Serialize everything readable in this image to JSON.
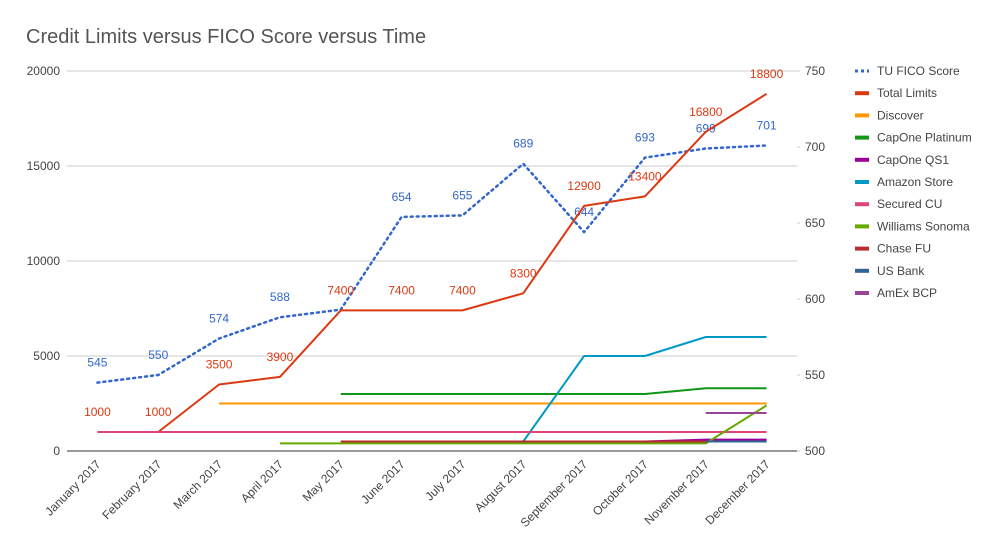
{
  "chart_data": {
    "type": "line",
    "title": "Credit Limits versus FICO Score versus Time",
    "categories": [
      "January 2017",
      "February 2017",
      "March 2017",
      "April 2017",
      "May 2017",
      "June 2017",
      "July 2017",
      "August 2017",
      "September 2017",
      "October 2017",
      "November 2017",
      "December 2017"
    ],
    "ylim": [
      0,
      20000
    ],
    "yticks": [
      0,
      5000,
      10000,
      15000,
      20000
    ],
    "y2lim": [
      500,
      750
    ],
    "y2ticks": [
      500,
      550,
      600,
      650,
      700,
      750
    ],
    "grid": true,
    "legend": "right",
    "series": [
      {
        "name": "TU FICO Score",
        "color": "#3366cc",
        "axis": "y2",
        "line_style": "dotted",
        "values": [
          545,
          550,
          574,
          588,
          593,
          654,
          655,
          689,
          644,
          693,
          699,
          701
        ],
        "value_labels": [
          "545",
          "550",
          "574",
          "588",
          null,
          "654",
          "655",
          "689",
          "644",
          "693",
          "699",
          "701"
        ]
      },
      {
        "name": "Total Limits",
        "color": "#dc3912",
        "values": [
          1000,
          1000,
          3500,
          3900,
          7400,
          7400,
          7400,
          8300,
          12900,
          13400,
          16800,
          18800
        ],
        "value_labels": [
          "1000",
          "1000",
          "3500",
          "3900",
          "7400",
          "7400",
          "7400",
          "8300",
          "12900",
          "13400",
          "16800",
          "18800"
        ]
      },
      {
        "name": "Discover",
        "color": "#ff9900",
        "values": [
          null,
          null,
          2500,
          2500,
          2500,
          2500,
          2500,
          2500,
          2500,
          2500,
          2500,
          2500
        ]
      },
      {
        "name": "CapOne Platinum",
        "color": "#109618",
        "values": [
          null,
          null,
          null,
          null,
          3000,
          3000,
          3000,
          3000,
          3000,
          3000,
          3300,
          3300
        ]
      },
      {
        "name": "CapOne QS1",
        "color": "#990099",
        "values": [
          null,
          null,
          null,
          null,
          null,
          null,
          null,
          null,
          null,
          500,
          600,
          600
        ]
      },
      {
        "name": "Amazon Store",
        "color": "#0099c6",
        "values": [
          null,
          null,
          null,
          null,
          null,
          null,
          null,
          500,
          5000,
          5000,
          6000,
          6000
        ]
      },
      {
        "name": "Secured CU",
        "color": "#dd4477",
        "values": [
          1000,
          1000,
          1000,
          1000,
          1000,
          1000,
          1000,
          1000,
          1000,
          1000,
          1000,
          1000
        ]
      },
      {
        "name": "Williams Sonoma",
        "color": "#66aa00",
        "values": [
          null,
          null,
          null,
          400,
          400,
          400,
          400,
          400,
          400,
          400,
          400,
          2400
        ]
      },
      {
        "name": "Chase FU",
        "color": "#b82e2e",
        "values": [
          null,
          null,
          null,
          null,
          500,
          500,
          500,
          500,
          500,
          500,
          500,
          500
        ]
      },
      {
        "name": "US Bank",
        "color": "#316395",
        "values": [
          null,
          null,
          null,
          null,
          null,
          null,
          null,
          null,
          null,
          null,
          500,
          500
        ]
      },
      {
        "name": "AmEx BCP",
        "color": "#994499",
        "values": [
          null,
          null,
          null,
          null,
          null,
          null,
          null,
          null,
          null,
          null,
          2000,
          2000
        ]
      }
    ]
  }
}
